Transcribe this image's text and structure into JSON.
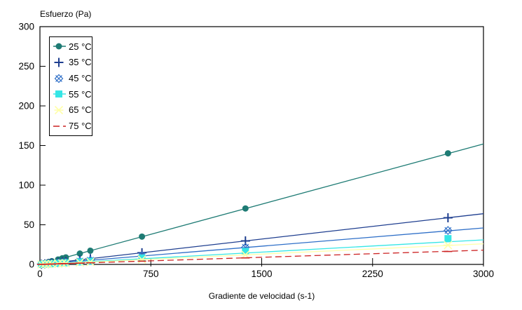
{
  "chart_data": {
    "type": "scatter",
    "title": "",
    "ylabel": "Esfuerzo (Pa)",
    "xlabel": "Gradiente de velocidad (s-1)",
    "xlim": [
      0,
      3000
    ],
    "ylim": [
      0,
      300
    ],
    "xticks": [
      0,
      750,
      1500,
      2250,
      3000
    ],
    "yticks": [
      0,
      50,
      100,
      150,
      200,
      250,
      300
    ],
    "grid": false,
    "legend_position": "top-left",
    "frame_color": "#000000",
    "background_color": "#ffffff",
    "x": [
      10,
      33,
      57,
      80,
      123,
      151,
      175,
      270,
      341,
      690,
      1390,
      2760
    ],
    "series": [
      {
        "name": "25 °C",
        "color": "#1e7b74",
        "marker": "circle",
        "line_style": "solid",
        "values": [
          0.5,
          1.7,
          2.9,
          4.1,
          6.2,
          7.7,
          8.9,
          13.7,
          17.3,
          35.1,
          70.6,
          140.2
        ],
        "fit_line_y_at_3000": 152
      },
      {
        "name": "35 °C",
        "color": "#1e3e8f",
        "marker": "plus",
        "line_style": "solid",
        "values": [
          0.2,
          0.7,
          1.2,
          1.7,
          2.6,
          3.2,
          3.7,
          5.8,
          7.3,
          14.7,
          29.6,
          58.8
        ],
        "fit_line_y_at_3000": 64
      },
      {
        "name": "45 °C",
        "color": "#2e6fc8",
        "marker": "star-diamond",
        "line_style": "solid",
        "values": [
          0.2,
          0.5,
          0.9,
          1.2,
          1.9,
          2.3,
          2.7,
          4.2,
          5.3,
          10.7,
          21.5,
          42.8
        ],
        "fit_line_y_at_3000": 46
      },
      {
        "name": "55 °C",
        "color": "#35e6e6",
        "marker": "square",
        "line_style": "solid",
        "values": [
          0.1,
          0.4,
          0.7,
          0.9,
          1.5,
          1.8,
          2.1,
          3.2,
          4.0,
          8.1,
          16.4,
          32.6
        ],
        "fit_line_y_at_3000": 31
      },
      {
        "name": "65 °C",
        "color": "#ffffaa",
        "marker": "asterisk",
        "line_style": "solid",
        "values": [
          0.1,
          0.3,
          0.5,
          0.7,
          1.1,
          1.3,
          1.5,
          2.4,
          3.0,
          6.1,
          12.2,
          24.3
        ],
        "fit_line_y_at_3000": 26
      },
      {
        "name": "75 °C",
        "color": "#cc2222",
        "marker": "dash",
        "line_style": "dashed",
        "values": [
          0.1,
          0.2,
          0.3,
          0.5,
          0.7,
          0.9,
          1.0,
          1.6,
          2.0,
          4.1,
          8.2,
          16.3
        ],
        "fit_line_y_at_3000": 18
      }
    ]
  }
}
